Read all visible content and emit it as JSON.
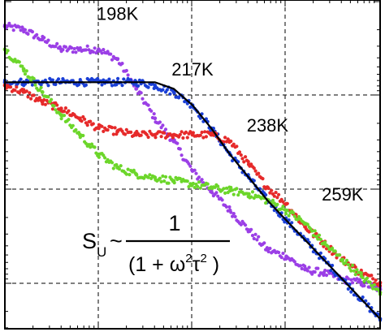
{
  "chart_data": {
    "type": "scatter",
    "x_scale": "log",
    "y_scale": "log",
    "grid": true,
    "grid_style": "dashed",
    "series": [
      {
        "name": "198K",
        "color": "#9b3fe6",
        "x": [
          0.0,
          0.05,
          0.1,
          0.15,
          0.2,
          0.25,
          0.3,
          0.35,
          0.4,
          0.45,
          0.5,
          0.55,
          0.6,
          0.65,
          0.7,
          0.75,
          0.8,
          0.85,
          0.9,
          0.95,
          1.0
        ],
        "y": [
          0.92,
          0.91,
          0.88,
          0.85,
          0.85,
          0.85,
          0.82,
          0.73,
          0.64,
          0.57,
          0.48,
          0.42,
          0.36,
          0.3,
          0.24,
          0.22,
          0.18,
          0.17,
          0.15,
          0.14,
          0.12
        ]
      },
      {
        "name": "217K",
        "color": "#1a3fd6",
        "x": [
          0.0,
          0.05,
          0.1,
          0.15,
          0.2,
          0.25,
          0.3,
          0.35,
          0.4,
          0.45,
          0.5,
          0.55,
          0.6,
          0.65,
          0.7,
          0.75,
          0.8,
          0.85,
          0.9,
          0.95,
          1.0
        ],
        "y": [
          0.75,
          0.75,
          0.75,
          0.75,
          0.75,
          0.75,
          0.75,
          0.75,
          0.74,
          0.72,
          0.68,
          0.61,
          0.53,
          0.46,
          0.39,
          0.33,
          0.27,
          0.21,
          0.15,
          0.09,
          0.03
        ]
      },
      {
        "name": "238K",
        "color": "#e62a2a",
        "x": [
          0.0,
          0.05,
          0.1,
          0.15,
          0.2,
          0.25,
          0.3,
          0.35,
          0.4,
          0.45,
          0.5,
          0.55,
          0.6,
          0.65,
          0.7,
          0.75,
          0.8,
          0.85,
          0.9,
          0.95,
          1.0
        ],
        "y": [
          0.74,
          0.72,
          0.69,
          0.67,
          0.64,
          0.61,
          0.6,
          0.59,
          0.59,
          0.59,
          0.59,
          0.59,
          0.57,
          0.5,
          0.43,
          0.38,
          0.31,
          0.26,
          0.21,
          0.17,
          0.14
        ]
      },
      {
        "name": "259K",
        "color": "#6cd62a",
        "x": [
          0.0,
          0.05,
          0.1,
          0.15,
          0.2,
          0.25,
          0.3,
          0.35,
          0.4,
          0.45,
          0.5,
          0.55,
          0.6,
          0.65,
          0.7,
          0.75,
          0.8,
          0.85,
          0.9,
          0.95,
          1.0
        ],
        "y": [
          0.85,
          0.79,
          0.72,
          0.65,
          0.59,
          0.53,
          0.49,
          0.47,
          0.46,
          0.45,
          0.44,
          0.43,
          0.42,
          0.41,
          0.39,
          0.36,
          0.32,
          0.26,
          0.21,
          0.16,
          0.11
        ]
      }
    ],
    "fit_curve": {
      "color": "#000000",
      "x": [
        0.0,
        0.4,
        0.45,
        0.5,
        0.55,
        0.6,
        0.65,
        0.7,
        0.75,
        0.8,
        0.85,
        0.9,
        0.95,
        1.0
      ],
      "y": [
        0.75,
        0.75,
        0.73,
        0.68,
        0.61,
        0.53,
        0.46,
        0.39,
        0.33,
        0.27,
        0.21,
        0.15,
        0.09,
        0.03
      ]
    },
    "annotations": [
      {
        "text": "198K",
        "x": 0.3,
        "y": 0.94
      },
      {
        "text": "217K",
        "x": 0.5,
        "y": 0.77
      },
      {
        "text": "238K",
        "x": 0.7,
        "y": 0.6
      },
      {
        "text": "259K",
        "x": 0.9,
        "y": 0.39
      }
    ],
    "formula": {
      "lhs_main": "S",
      "lhs_sub": "U",
      "tilde": "~",
      "numerator": "1",
      "den_open": "(1 + ω",
      "den_sup1": "2",
      "den_mid": "τ",
      "den_sup2": "2",
      "den_close": " )"
    }
  }
}
